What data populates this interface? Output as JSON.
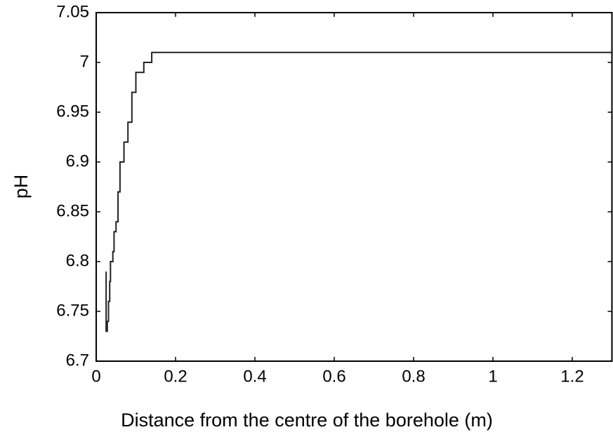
{
  "chart_data": {
    "type": "line",
    "xlabel": "Distance from the centre of the borehole (m)",
    "ylabel": "pH",
    "x": [
      0.025,
      0.025,
      0.028,
      0.028,
      0.031,
      0.031,
      0.034,
      0.034,
      0.036,
      0.036,
      0.042,
      0.042,
      0.045,
      0.045,
      0.05,
      0.05,
      0.055,
      0.055,
      0.06,
      0.06,
      0.07,
      0.07,
      0.08,
      0.08,
      0.09,
      0.09,
      0.1,
      0.1,
      0.12,
      0.12,
      0.14,
      0.14,
      1.3
    ],
    "values": [
      6.79,
      6.73,
      6.73,
      6.74,
      6.74,
      6.76,
      6.76,
      6.78,
      6.78,
      6.8,
      6.8,
      6.81,
      6.81,
      6.83,
      6.83,
      6.84,
      6.84,
      6.87,
      6.87,
      6.9,
      6.9,
      6.92,
      6.92,
      6.94,
      6.94,
      6.97,
      6.97,
      6.99,
      6.99,
      7.0,
      7.0,
      7.01,
      7.01
    ],
    "color": "#222222",
    "xlim": [
      0,
      1.3
    ],
    "xticks": [
      0,
      0.2,
      0.4,
      0.6,
      0.8,
      1,
      1.2
    ],
    "ylim": [
      6.7,
      7.05
    ],
    "yticks": [
      6.7,
      6.75,
      6.8,
      6.85,
      6.9,
      6.95,
      7,
      7.05
    ],
    "grid": false
  }
}
